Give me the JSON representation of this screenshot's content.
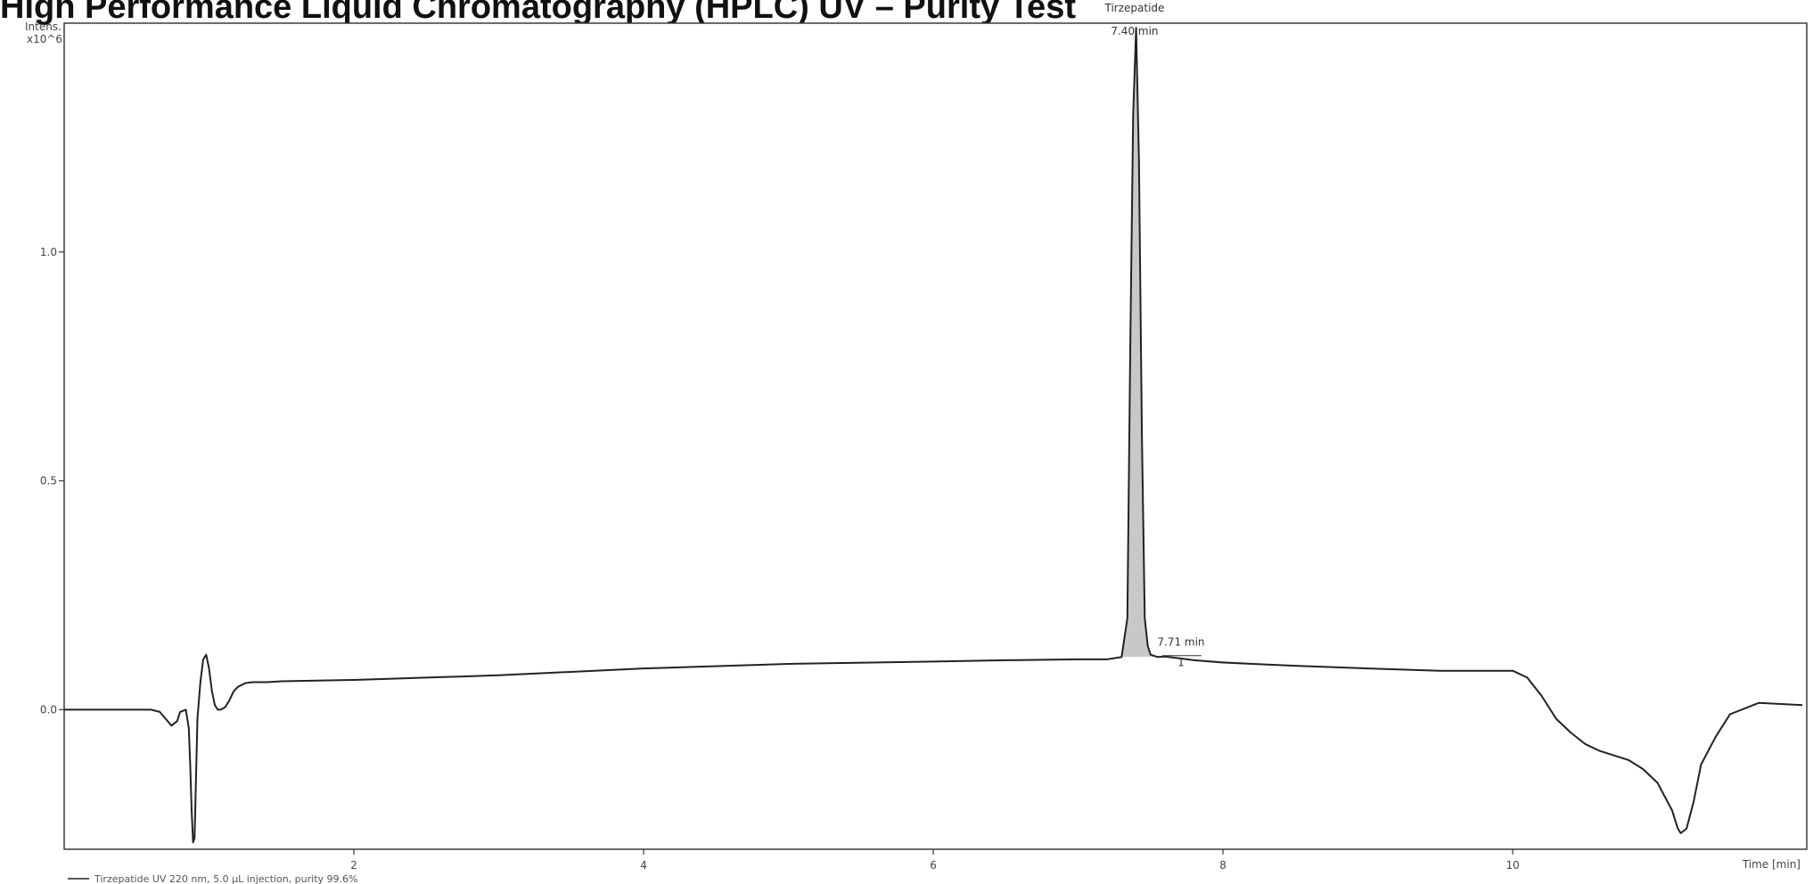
{
  "title": "High Performance Liquid Chromatography (HPLC) UV – Purity Test",
  "chart_data": {
    "type": "line",
    "ylabel_lines": [
      "Intens.",
      "x10^6"
    ],
    "xlabel": "Time [min]",
    "xlim": [
      0.0,
      12.03
    ],
    "ylim": [
      -0.305,
      1.5
    ],
    "x_ticks": [
      2,
      4,
      6,
      8,
      10
    ],
    "x_tick_labels": [
      "2",
      "4",
      "6",
      "8",
      "10"
    ],
    "y_ticks": [
      0.0,
      0.5,
      1.0
    ],
    "y_tick_labels": [
      "0.0",
      "0.5",
      "1.0"
    ],
    "grid": false,
    "series": [
      {
        "color": "#222222",
        "fill_under_peaks": "#c8c8c8",
        "x": [
          0.0,
          0.3,
          0.6,
          0.66,
          0.7,
          0.74,
          0.78,
          0.8,
          0.84,
          0.86,
          0.87,
          0.88,
          0.89,
          0.9,
          0.91,
          0.92,
          0.94,
          0.96,
          0.98,
          1.0,
          1.02,
          1.04,
          1.06,
          1.08,
          1.11,
          1.14,
          1.17,
          1.2,
          1.25,
          1.3,
          1.35,
          1.4,
          1.45,
          1.5,
          2.0,
          3.0,
          4.0,
          5.0,
          6.0,
          6.5,
          7.0,
          7.2,
          7.3,
          7.34,
          7.36,
          7.38,
          7.4,
          7.42,
          7.44,
          7.46,
          7.48,
          7.5,
          7.55,
          7.6,
          7.7,
          7.8,
          8.0,
          8.5,
          9.0,
          9.5,
          10.0,
          10.1,
          10.2,
          10.3,
          10.4,
          10.5,
          10.6,
          10.8,
          10.9,
          11.0,
          11.05,
          11.1,
          11.12,
          11.14,
          11.16,
          11.2,
          11.25,
          11.3,
          11.4,
          11.5,
          11.7,
          12.0
        ],
        "y": [
          0.0,
          0.0,
          0.0,
          -0.005,
          -0.02,
          -0.035,
          -0.025,
          -0.005,
          0.0,
          -0.04,
          -0.12,
          -0.22,
          -0.29,
          -0.28,
          -0.15,
          -0.02,
          0.06,
          0.11,
          0.12,
          0.09,
          0.04,
          0.01,
          0.0,
          0.0,
          0.005,
          0.02,
          0.04,
          0.05,
          0.058,
          0.06,
          0.06,
          0.06,
          0.061,
          0.062,
          0.065,
          0.075,
          0.09,
          0.1,
          0.105,
          0.108,
          0.11,
          0.11,
          0.115,
          0.2,
          0.8,
          1.3,
          1.49,
          1.2,
          0.6,
          0.2,
          0.14,
          0.12,
          0.115,
          0.116,
          0.112,
          0.108,
          0.103,
          0.096,
          0.09,
          0.085,
          0.085,
          0.07,
          0.03,
          -0.02,
          -0.05,
          -0.075,
          -0.09,
          -0.11,
          -0.13,
          -0.16,
          -0.19,
          -0.22,
          -0.24,
          -0.26,
          -0.27,
          -0.26,
          -0.2,
          -0.12,
          -0.06,
          -0.01,
          0.015,
          0.01
        ]
      }
    ],
    "annotations": [
      {
        "text": "Tirzepatide",
        "x": 7.39,
        "y": 1.525
      },
      {
        "text": "7.40 min",
        "x": 7.39,
        "y": 1.475
      },
      {
        "text": "7.71 min",
        "x": 7.71,
        "y": 0.14
      },
      {
        "text": "1",
        "x": 7.71,
        "y": 0.095
      }
    ],
    "legend": {
      "placement": "bottom-left",
      "text": "Tirzepatide UV 220 nm, 5.0 µL injection, purity 99.6%"
    }
  }
}
